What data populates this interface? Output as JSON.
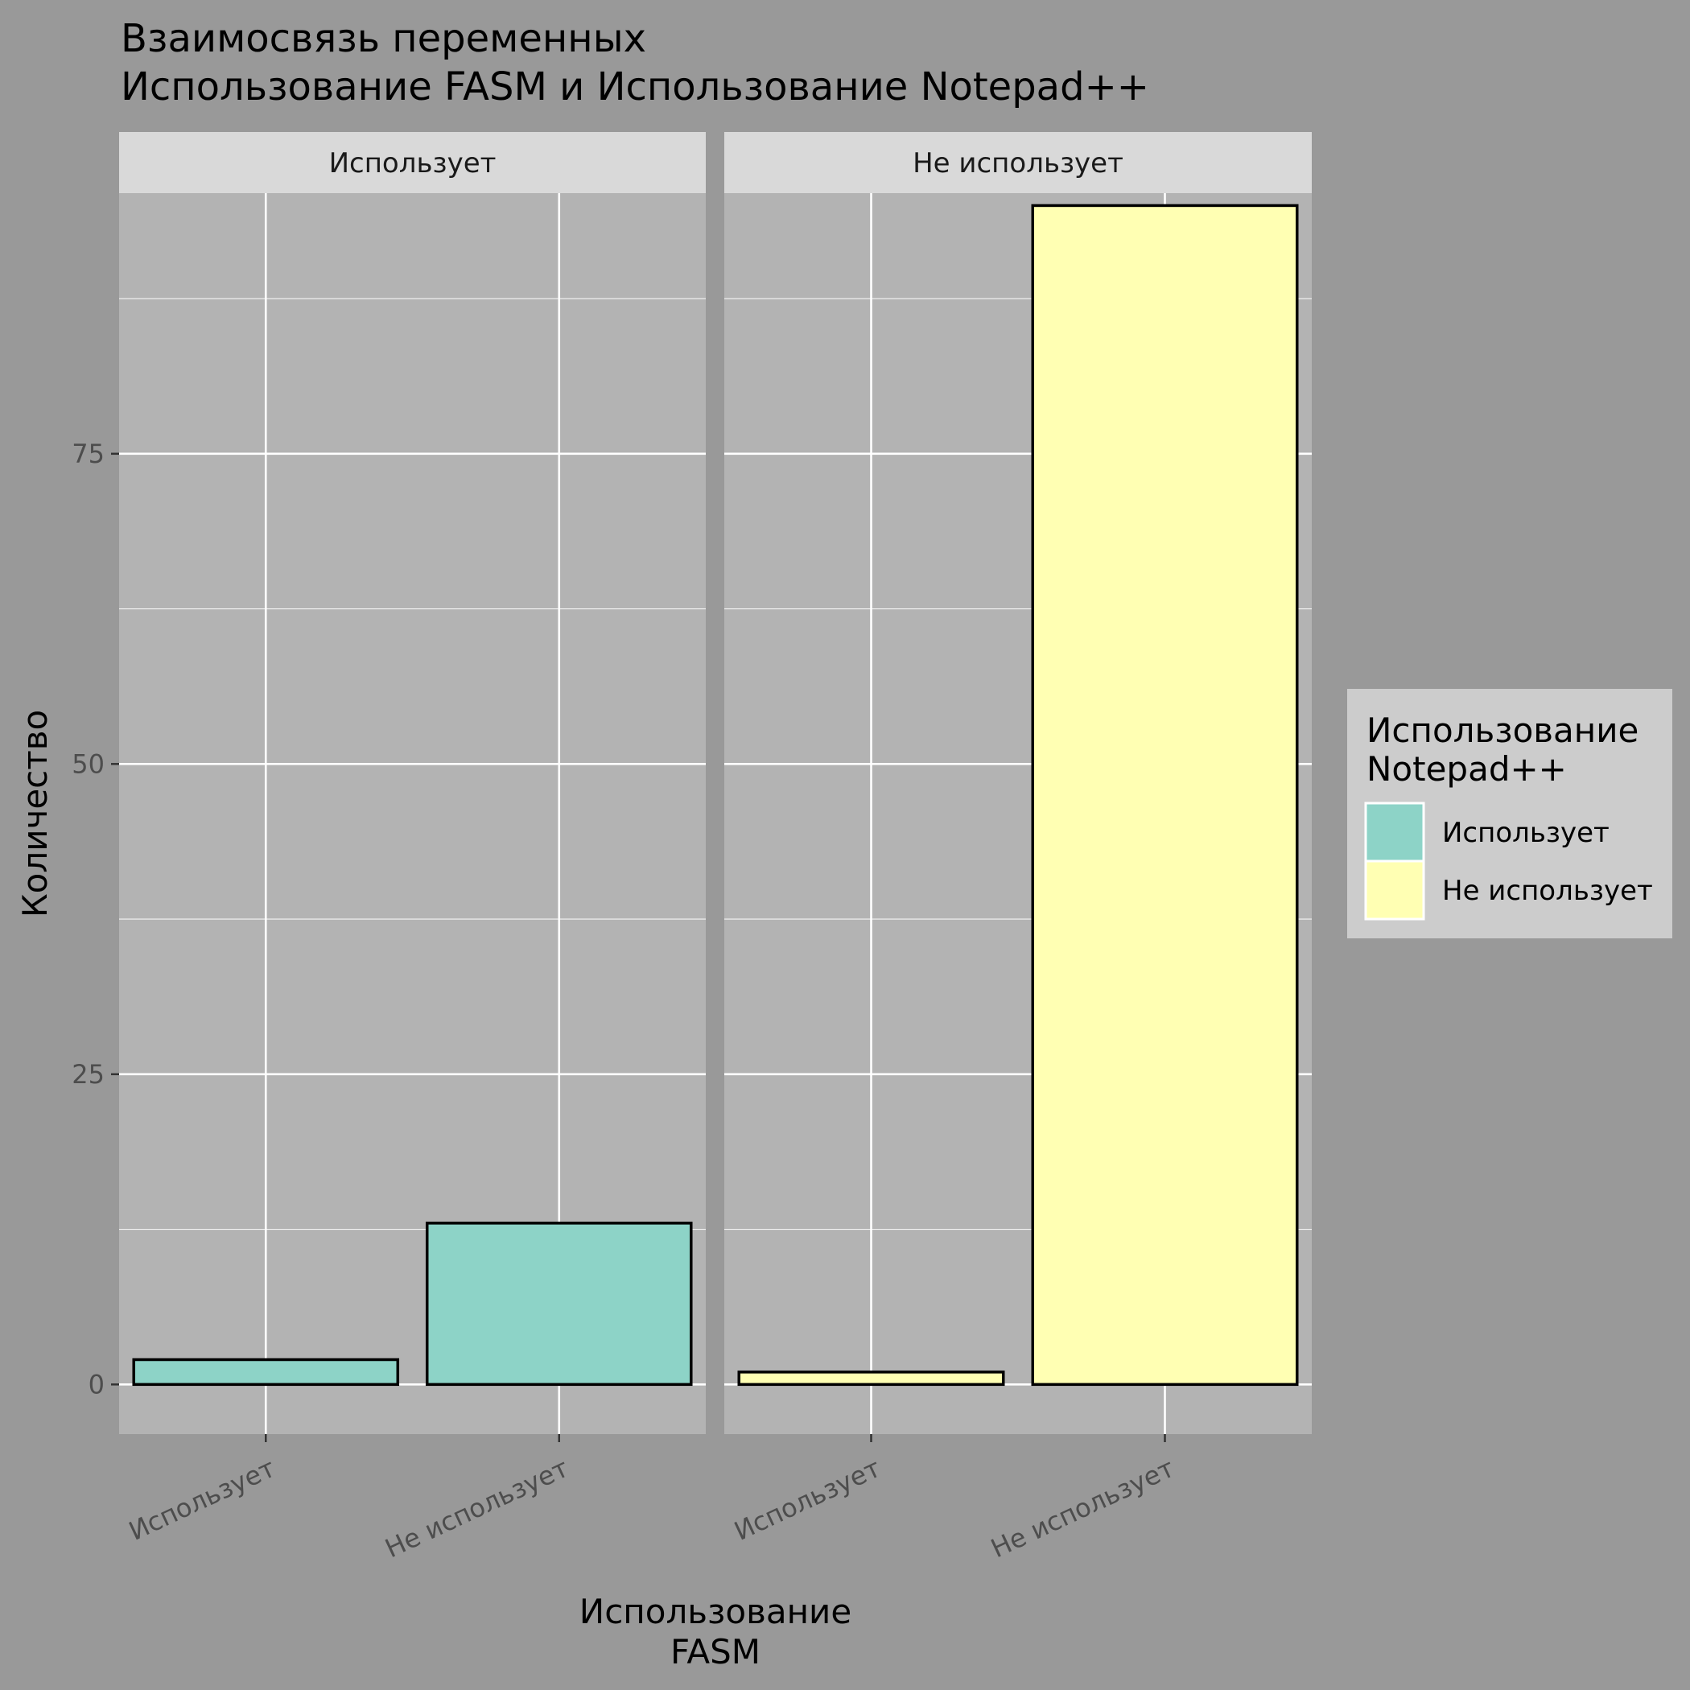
{
  "chart_data": {
    "type": "bar",
    "title_lines": [
      "Взаимосвязь переменных",
      " Использование FASM и Использование Notepad++"
    ],
    "xlabel_lines": [
      "Использование",
      "FASM"
    ],
    "ylabel": "Количество",
    "ylim": [
      -4,
      96
    ],
    "yticks": [
      0,
      25,
      50,
      75
    ],
    "categories": [
      "Использует",
      "Не использует"
    ],
    "facets": [
      {
        "label": "Использует",
        "values": [
          2,
          13
        ],
        "fill_key": "Использует"
      },
      {
        "label": "Не использует",
        "values": [
          1,
          95
        ],
        "fill_key": "Не использует"
      }
    ],
    "legend": {
      "title_lines": [
        "Использование",
        "Notepad++"
      ],
      "entries": [
        {
          "label": "Использует",
          "color": "#8dd3c7"
        },
        {
          "label": "Не использует",
          "color": "#ffffb3"
        }
      ],
      "position": "right"
    },
    "colors": {
      "background": "#999999",
      "panel": "#b3b3b3",
      "strip": "#d9d9d9",
      "grid": "#ffffff",
      "legend_bg": "#cccccc",
      "bar_outline": "#000000"
    },
    "grid": true
  }
}
